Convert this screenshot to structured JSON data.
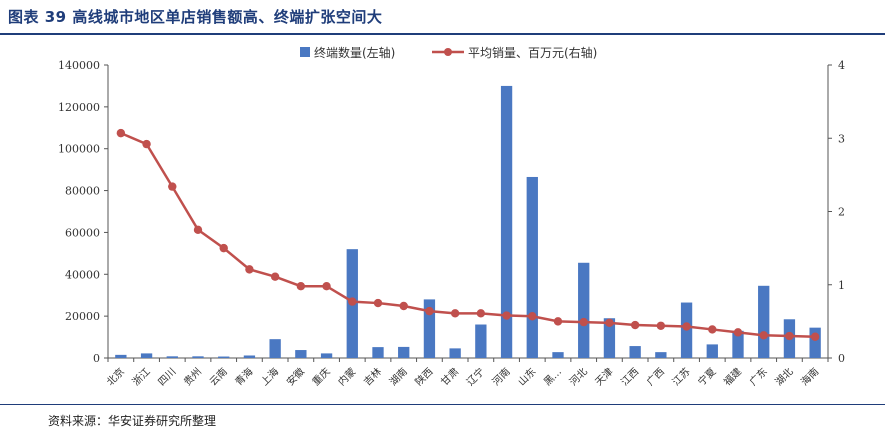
{
  "header": {
    "title": "图表 39  高线城市地区单店销售额高、终端扩张空间大"
  },
  "footer": {
    "source": "资料来源：华安证券研究所整理"
  },
  "colors": {
    "bar": "#4a78c2",
    "line": "#c0504d",
    "title": "#1f3d7a"
  },
  "chart_data": {
    "type": "bar",
    "title": "",
    "xlabel": "",
    "ylabel": "",
    "y2label": "",
    "legend_position": "top",
    "grid": false,
    "categories": [
      "北京",
      "浙江",
      "四川",
      "贵州",
      "云南",
      "青海",
      "上海",
      "安徽",
      "重庆",
      "内蒙",
      "吉林",
      "湖南",
      "陕西",
      "甘肃",
      "辽宁",
      "河南",
      "山东",
      "黑…",
      "河北",
      "天津",
      "江西",
      "广西",
      "江苏",
      "宁夏",
      "福建",
      "广东",
      "湖北",
      "海南"
    ],
    "ylim": [
      0,
      140000
    ],
    "yticks": [
      0,
      20000,
      40000,
      60000,
      80000,
      100000,
      120000,
      140000
    ],
    "y2lim": [
      0,
      4
    ],
    "y2ticks": [
      0,
      1,
      2,
      3,
      4
    ],
    "series": [
      {
        "name": "终端数量(左轴)",
        "type": "bar",
        "axis": "left",
        "values": [
          1500,
          2200,
          800,
          800,
          700,
          1200,
          9000,
          3800,
          2200,
          52000,
          5200,
          5300,
          28000,
          4600,
          16000,
          130000,
          86500,
          2800,
          45500,
          19000,
          5700,
          2800,
          26500,
          6500,
          13000,
          34500,
          18500,
          14500
        ]
      },
      {
        "name": "平均销量、百万元(右轴)",
        "type": "line",
        "axis": "right",
        "values": [
          3.07,
          2.92,
          2.34,
          1.75,
          1.5,
          1.21,
          1.11,
          0.98,
          0.98,
          0.77,
          0.75,
          0.71,
          0.64,
          0.61,
          0.61,
          0.58,
          0.57,
          0.5,
          0.49,
          0.48,
          0.45,
          0.44,
          0.43,
          0.39,
          0.35,
          0.31,
          0.3,
          0.29
        ]
      }
    ]
  }
}
